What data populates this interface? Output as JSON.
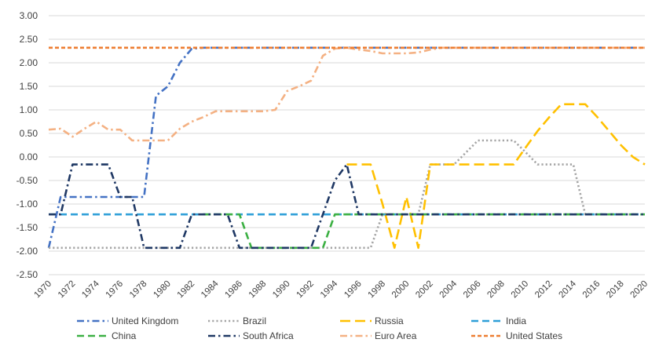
{
  "chart_data": {
    "type": "line",
    "title": "",
    "xlabel": "",
    "ylabel": "",
    "ylim": [
      -2.5,
      3.0
    ],
    "xlim": [
      1970,
      2020
    ],
    "yticks": [
      "3.00",
      "2.50",
      "2.00",
      "1.50",
      "1.00",
      "0.50",
      "0.00",
      "-0.50",
      "-1.00",
      "-1.50",
      "-2.00",
      "-2.50"
    ],
    "xticks": [
      "1970",
      "1972",
      "1974",
      "1976",
      "1978",
      "1980",
      "1982",
      "1984",
      "1986",
      "1988",
      "1990",
      "1992",
      "1994",
      "1996",
      "1998",
      "2000",
      "2002",
      "2004",
      "2006",
      "2008",
      "2010",
      "2012",
      "2014",
      "2016",
      "2018",
      "2020"
    ],
    "grid": "horizontal",
    "legend_position": "bottom",
    "series": [
      {
        "name": "United Kingdom",
        "color": "#4472C4",
        "dash": "dash-dot",
        "points": [
          [
            1970,
            -1.93
          ],
          [
            1971,
            -0.85
          ],
          [
            1972,
            -0.85
          ],
          [
            1973,
            -0.85
          ],
          [
            1974,
            -0.85
          ],
          [
            1975,
            -0.85
          ],
          [
            1976,
            -0.85
          ],
          [
            1977,
            -0.85
          ],
          [
            1978,
            -0.85
          ],
          [
            1979,
            1.3
          ],
          [
            1980,
            1.5
          ],
          [
            1981,
            2.0
          ],
          [
            1982,
            2.3
          ],
          [
            1983,
            2.32
          ],
          [
            2020,
            2.32
          ]
        ]
      },
      {
        "name": "Brazil",
        "color": "#A5A5A5",
        "dash": "dotted",
        "points": [
          [
            1970,
            -1.93
          ],
          [
            1996,
            -1.93
          ],
          [
            1997,
            -1.93
          ],
          [
            1998,
            -1.22
          ],
          [
            2001,
            -1.22
          ],
          [
            2002,
            -0.16
          ],
          [
            2004,
            -0.16
          ],
          [
            2006,
            0.35
          ],
          [
            2008,
            0.35
          ],
          [
            2009,
            0.35
          ],
          [
            2010,
            0.1
          ],
          [
            2011,
            -0.16
          ],
          [
            2014,
            -0.16
          ],
          [
            2015,
            -1.22
          ],
          [
            2020,
            -1.22
          ]
        ]
      },
      {
        "name": "Russia",
        "color": "#FFC000",
        "dash": "long-dash",
        "points": [
          [
            1995,
            -0.16
          ],
          [
            1996,
            -0.16
          ],
          [
            1997,
            -0.16
          ],
          [
            1998,
            -1.0
          ],
          [
            1999,
            -1.93
          ],
          [
            2000,
            -0.85
          ],
          [
            2001,
            -1.93
          ],
          [
            2002,
            -0.16
          ],
          [
            2003,
            -0.16
          ],
          [
            2008,
            -0.16
          ],
          [
            2009,
            -0.16
          ],
          [
            2010,
            0.2
          ],
          [
            2011,
            0.55
          ],
          [
            2012,
            0.85
          ],
          [
            2013,
            1.12
          ],
          [
            2014,
            1.12
          ],
          [
            2015,
            1.12
          ],
          [
            2016,
            0.85
          ],
          [
            2017,
            0.55
          ],
          [
            2018,
            0.25
          ],
          [
            2019,
            0.0
          ],
          [
            2020,
            -0.16
          ]
        ]
      },
      {
        "name": "India",
        "color": "#2E9FD8",
        "dash": "dash",
        "points": [
          [
            1970,
            -1.22
          ],
          [
            2020,
            -1.22
          ]
        ]
      },
      {
        "name": "China",
        "color": "#3CB043",
        "dash": "dash",
        "points": [
          [
            1983,
            -1.22
          ],
          [
            1986,
            -1.22
          ],
          [
            1987,
            -1.93
          ],
          [
            1993,
            -1.93
          ],
          [
            1994,
            -1.22
          ],
          [
            2020,
            -1.22
          ]
        ]
      },
      {
        "name": "South Africa",
        "color": "#1F3864",
        "dash": "dash-dot",
        "points": [
          [
            1970,
            -1.22
          ],
          [
            1971,
            -1.22
          ],
          [
            1972,
            -0.16
          ],
          [
            1973,
            -0.16
          ],
          [
            1974,
            -0.16
          ],
          [
            1975,
            -0.16
          ],
          [
            1976,
            -0.85
          ],
          [
            1977,
            -0.85
          ],
          [
            1978,
            -1.93
          ],
          [
            1979,
            -1.93
          ],
          [
            1980,
            -1.93
          ],
          [
            1981,
            -1.93
          ],
          [
            1982,
            -1.22
          ],
          [
            1984,
            -1.22
          ],
          [
            1985,
            -1.22
          ],
          [
            1986,
            -1.93
          ],
          [
            1992,
            -1.93
          ],
          [
            1993,
            -1.22
          ],
          [
            1994,
            -0.5
          ],
          [
            1995,
            -0.16
          ],
          [
            1996,
            -1.22
          ],
          [
            2020,
            -1.22
          ]
        ]
      },
      {
        "name": "Euro Area",
        "color": "#F4B183",
        "dash": "dash-dot",
        "points": [
          [
            1970,
            0.58
          ],
          [
            1971,
            0.6
          ],
          [
            1972,
            0.43
          ],
          [
            1973,
            0.6
          ],
          [
            1974,
            0.75
          ],
          [
            1975,
            0.58
          ],
          [
            1976,
            0.58
          ],
          [
            1977,
            0.35
          ],
          [
            1978,
            0.35
          ],
          [
            1979,
            0.35
          ],
          [
            1980,
            0.35
          ],
          [
            1981,
            0.6
          ],
          [
            1982,
            0.75
          ],
          [
            1983,
            0.85
          ],
          [
            1984,
            0.97
          ],
          [
            1985,
            0.97
          ],
          [
            1986,
            0.97
          ],
          [
            1987,
            0.97
          ],
          [
            1988,
            0.97
          ],
          [
            1989,
            1.0
          ],
          [
            1990,
            1.4
          ],
          [
            1991,
            1.5
          ],
          [
            1992,
            1.62
          ],
          [
            1993,
            2.15
          ],
          [
            1994,
            2.3
          ],
          [
            1995,
            2.32
          ],
          [
            1996,
            2.28
          ],
          [
            1997,
            2.25
          ],
          [
            1998,
            2.2
          ],
          [
            1999,
            2.2
          ],
          [
            2000,
            2.2
          ],
          [
            2001,
            2.22
          ],
          [
            2002,
            2.28
          ],
          [
            2003,
            2.32
          ],
          [
            2020,
            2.32
          ]
        ]
      },
      {
        "name": "United States",
        "color": "#ED7D31",
        "dash": "short-dash",
        "points": [
          [
            1970,
            2.32
          ],
          [
            2020,
            2.32
          ]
        ]
      }
    ]
  }
}
